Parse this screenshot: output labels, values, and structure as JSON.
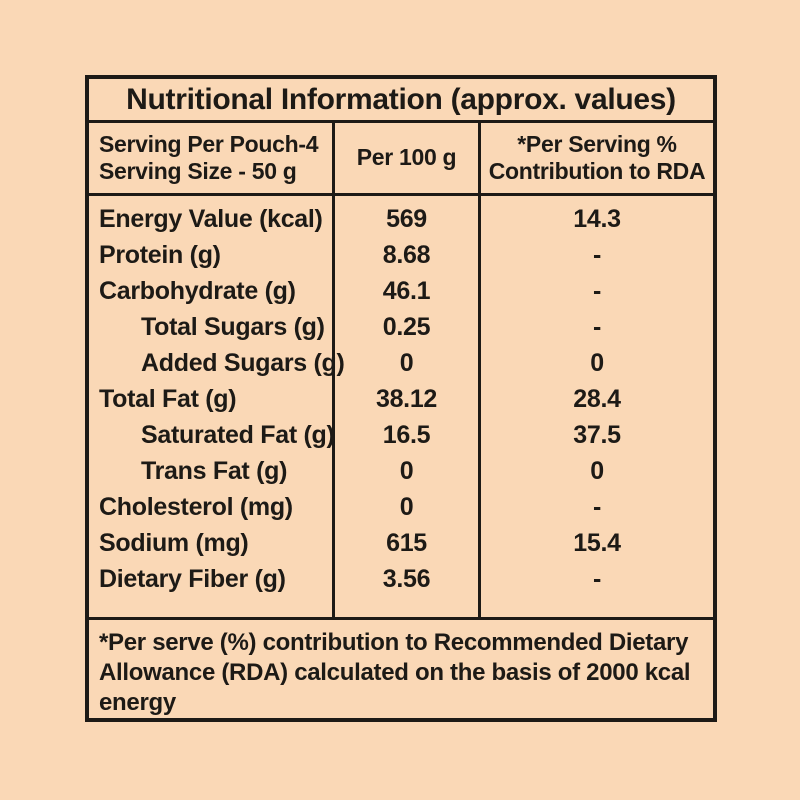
{
  "page": {
    "background_color": "#fad8b6",
    "text_color": "#1d1a16"
  },
  "table": {
    "title": "Nutritional Information (approx. values)",
    "header": {
      "col1_line1": "Serving Per Pouch-4",
      "col1_line2": "Serving Size - 50 g",
      "col2": "Per 100 g",
      "col3_line1": "*Per Serving %",
      "col3_line2": "Contribution to RDA"
    },
    "rows": [
      {
        "label": "Energy Value (kcal)",
        "indent": false,
        "per_100g": "569",
        "rda_percent": "14.3"
      },
      {
        "label": "Protein (g)",
        "indent": false,
        "per_100g": "8.68",
        "rda_percent": "-"
      },
      {
        "label": "Carbohydrate (g)",
        "indent": false,
        "per_100g": "46.1",
        "rda_percent": "-"
      },
      {
        "label": "Total Sugars (g)",
        "indent": true,
        "per_100g": "0.25",
        "rda_percent": "-"
      },
      {
        "label": "Added Sugars (g)",
        "indent": true,
        "per_100g": "0",
        "rda_percent": "0"
      },
      {
        "label": "Total Fat (g)",
        "indent": false,
        "per_100g": "38.12",
        "rda_percent": "28.4"
      },
      {
        "label": "Saturated Fat (g)",
        "indent": true,
        "per_100g": "16.5",
        "rda_percent": "37.5"
      },
      {
        "label": "Trans Fat (g)",
        "indent": true,
        "per_100g": "0",
        "rda_percent": "0"
      },
      {
        "label": "Cholesterol (mg)",
        "indent": false,
        "per_100g": "0",
        "rda_percent": "-"
      },
      {
        "label": "Sodium (mg)",
        "indent": false,
        "per_100g": "615",
        "rda_percent": "15.4"
      },
      {
        "label": "Dietary Fiber (g)",
        "indent": false,
        "per_100g": "3.56",
        "rda_percent": "-"
      }
    ],
    "footnote_line1": "*Per serve (%) contribution to Recommended Dietary",
    "footnote_line2": "Allowance (RDA) calculated on the basis of 2000 kcal energy"
  }
}
